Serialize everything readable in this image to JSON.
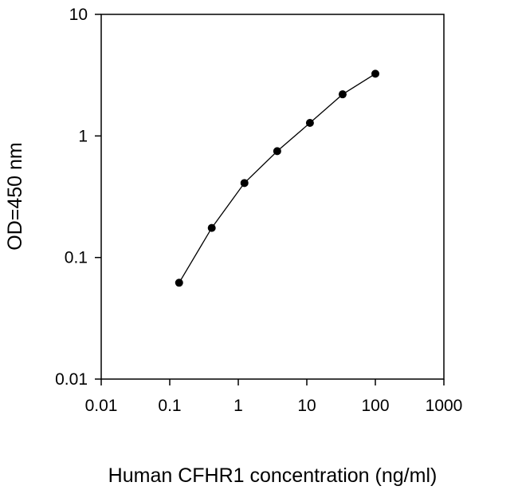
{
  "chart_data": {
    "type": "line",
    "title": "",
    "xlabel": "Human CFHR1 concentration (ng/ml)",
    "ylabel": "OD=450 nm",
    "xscale": "log",
    "yscale": "log",
    "xlim": [
      0.01,
      1000
    ],
    "ylim": [
      0.01,
      10
    ],
    "x_ticks": [
      "0.01",
      "0.1",
      "1",
      "10",
      "100",
      "1000"
    ],
    "y_ticks": [
      "0.01",
      "0.1",
      "1",
      "10"
    ],
    "grid": false,
    "legend": "none",
    "series": [
      {
        "x": [
          0.137,
          0.41,
          1.23,
          3.7,
          11.1,
          33.3,
          100
        ],
        "y": [
          0.062,
          0.175,
          0.41,
          0.75,
          1.28,
          2.2,
          3.25
        ],
        "color": "#000000",
        "marker": "circle"
      }
    ]
  }
}
